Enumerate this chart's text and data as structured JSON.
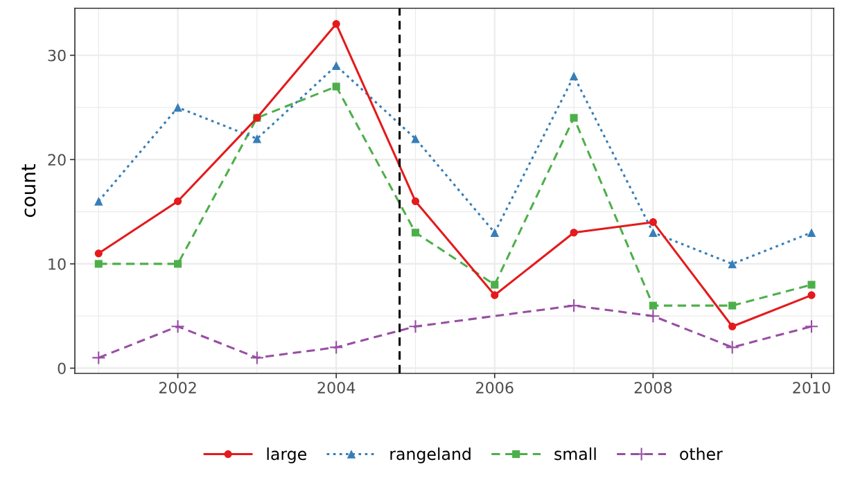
{
  "chart_data": {
    "type": "line",
    "ylabel": "count",
    "x": [
      2001,
      2002,
      2003,
      2004,
      2005,
      2006,
      2007,
      2008,
      2009,
      2010
    ],
    "series": [
      {
        "name": "large",
        "color": "#e41a1c",
        "marker": "circle",
        "line_style": "solid",
        "values": [
          11,
          16,
          24,
          33,
          16,
          7,
          13,
          14,
          4,
          7
        ]
      },
      {
        "name": "rangeland",
        "color": "#377eb8",
        "marker": "triangle",
        "line_style": "dotted",
        "values": [
          16,
          25,
          22,
          29,
          22,
          13,
          28,
          13,
          10,
          13
        ]
      },
      {
        "name": "small",
        "color": "#4daf4a",
        "marker": "square",
        "line_style": "dashed",
        "values": [
          10,
          10,
          24,
          27,
          13,
          8,
          24,
          6,
          6,
          8
        ]
      },
      {
        "name": "other",
        "color": "#984ea3",
        "marker": "cross",
        "line_style": "dashed",
        "x": [
          2001,
          2002,
          2003,
          2004,
          2005,
          2007,
          2008,
          2009,
          2010
        ],
        "values": [
          1,
          4,
          1,
          2,
          4,
          6,
          5,
          2,
          4
        ]
      }
    ],
    "ref_lines": [
      {
        "axis": "x",
        "value": 2004.8,
        "color": "#000000",
        "line_style": "dashed"
      }
    ],
    "xlim": [
      2000.7,
      2010.28
    ],
    "xticks": [
      2002,
      2004,
      2006,
      2008,
      2010
    ],
    "ylim": [
      -0.5,
      34.5
    ],
    "yticks": [
      0,
      10,
      20,
      30
    ],
    "grid": true,
    "legend": "bottom"
  }
}
